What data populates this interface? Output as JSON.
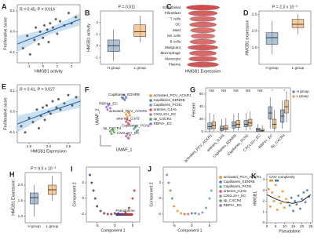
{
  "chart_data": [
    {
      "type": "scatter",
      "panel": "A",
      "annotation": "R = 0.45, P = 0.014",
      "xlabel": "HMGB1 activity",
      "ylabel": "Proliferative score",
      "x": [
        -1.4,
        -1.1,
        -0.9,
        -0.6,
        -0.5,
        -0.3,
        -0.2,
        0,
        0.1,
        0.3,
        0.4,
        0.5,
        0.7,
        0.9,
        1.0,
        1.2,
        1.5,
        1.8,
        2.0,
        2.3
      ],
      "y": [
        -0.08,
        -0.02,
        -0.11,
        -0.04,
        0.02,
        -0.06,
        0.0,
        -0.03,
        0.03,
        0.01,
        -0.05,
        0.04,
        0.02,
        0.06,
        -0.01,
        0.05,
        0.03,
        0.09,
        0.04,
        0.07
      ],
      "color": "#444444",
      "fit": {
        "x": [
          -1.8,
          0.4,
          2.6
        ],
        "y": [
          -0.06,
          0,
          0.06
        ],
        "lower": [
          -0.1,
          -0.015,
          0.03
        ],
        "upper": [
          -0.02,
          0.015,
          0.09
        ]
      },
      "fit_color": "#1f5fa8",
      "band_color": "#a9cbe8",
      "xlim": [
        -1.8,
        2.6
      ],
      "ylim": [
        -0.15,
        0.13
      ],
      "xticks": [
        -1,
        0,
        1,
        2
      ],
      "yticks": [
        -0.1,
        {
          "value": 0,
          "label": "0.0"
        },
        0.1
      ]
    },
    {
      "type": "box",
      "panel": "B",
      "annotation": "P = 0.011",
      "ylabel": "HMGB1 activity",
      "categories": [
        "H group",
        "L group"
      ],
      "colors": [
        "#6b8fb5",
        "#f0a04b"
      ],
      "min": [
        -1.3,
        0.3
      ],
      "q1": [
        -0.5,
        0.8
      ],
      "median": [
        0,
        1.2
      ],
      "q3": [
        0.5,
        1.8
      ],
      "max": [
        1.4,
        2.6
      ],
      "ylim": [
        -1.6,
        3
      ],
      "yticks": [
        -1,
        0,
        1,
        2
      ]
    },
    {
      "type": "violin",
      "panel": "C",
      "xlabel": "HMGB1 Expression",
      "categories": [
        "Endothelial",
        "Fibroblast",
        "T cells",
        "DC",
        "Mast",
        "NK cells",
        "B cells",
        "Malignant",
        "Macrophage",
        "Monocyte",
        "Plasma"
      ],
      "values": [
        3.2,
        2.8,
        2.5,
        2.6,
        2.4,
        2.3,
        2.5,
        2.9,
        2.6,
        2.7,
        3.0
      ],
      "xlim": [
        0,
        4
      ],
      "colormap": [
        "#fbe0e0",
        "#c62828"
      ]
    },
    {
      "type": "box",
      "panel": "D",
      "annotation": "P = 2.3 x 10⁻⁵",
      "ylabel": "HMGB1 expression",
      "categories": [
        "H group",
        "L group"
      ],
      "colors": [
        "#6b8fb5",
        "#f0a04b"
      ],
      "min": [
        1.3,
        1.9
      ],
      "q1": [
        1.6,
        2.1
      ],
      "median": [
        1.8,
        2.2
      ],
      "q3": [
        1.95,
        2.35
      ],
      "max": [
        2.3,
        2.5
      ],
      "ylim": [
        1.0,
        2.6
      ],
      "yticks": [
        1.5,
        {
          "value": 2,
          "label": "2.0"
        },
        2.5
      ]
    },
    {
      "type": "scatter",
      "panel": "E",
      "annotation": "R = 0.41, P = 0.027",
      "xlabel": "HMGB1 Expression",
      "ylabel": "Proliferative score",
      "x": [
        1.3,
        1.4,
        1.5,
        1.6,
        1.7,
        1.75,
        1.8,
        1.85,
        1.9,
        1.95,
        2.0,
        2.05,
        2.1,
        2.2,
        2.25,
        2.3,
        2.4,
        2.5,
        2.6,
        2.7
      ],
      "y": [
        -0.07,
        -0.1,
        -0.03,
        -0.05,
        0.01,
        -0.08,
        -0.02,
        0.02,
        -0.04,
        0.03,
        0.0,
        -0.01,
        0.05,
        0.02,
        0.06,
        0.01,
        0.04,
        0.08,
        0.03,
        0.07
      ],
      "color": "#444444",
      "fit": {
        "x": [
          1.2,
          2.0,
          2.8
        ],
        "y": [
          -0.06,
          0,
          0.05
        ],
        "lower": [
          -0.1,
          -0.015,
          0.02
        ],
        "upper": [
          -0.02,
          0.015,
          0.08
        ]
      },
      "fit_color": "#1f5fa8",
      "band_color": "#a9cbe8",
      "xlim": [
        1.2,
        2.8
      ],
      "ylim": [
        -0.15,
        0.13
      ],
      "xticks": [
        1.5,
        {
          "value": 2,
          "label": "2.0"
        },
        2.5
      ],
      "yticks": [
        -0.1,
        {
          "value": 0,
          "label": "0.0"
        },
        0.1
      ]
    },
    {
      "type": "scatter",
      "panel": "F",
      "xlabel": "UMAP_1",
      "ylabel": "UMAP_2",
      "frame": false,
      "cluster_labels": true,
      "xlim": [
        -6,
        6
      ],
      "ylim": [
        -6,
        6
      ],
      "series": [
        {
          "name": "activated_PCV_ACKR1",
          "color": "#f28e2b",
          "x": [
            0.5,
            1,
            1.5,
            0.8,
            1.3
          ],
          "y": [
            0.5,
            1,
            0.3,
            0,
            0.8
          ]
        },
        {
          "name": "Capillaries_EDNRB",
          "color": "#4e79a7",
          "x": [
            -0.5,
            0,
            0.5,
            0.2,
            -0.2
          ],
          "y": [
            4,
            4.5,
            4,
            3.5,
            3.8
          ]
        },
        {
          "name": "Capillaries_PCN1",
          "color": "#59a89c",
          "x": [
            2.5,
            3,
            3.5,
            3.2,
            2.8
          ],
          "y": [
            -2.5,
            -2,
            -2.8,
            -3,
            -2.2
          ]
        },
        {
          "name": "arteries_GJA5",
          "color": "#e15759",
          "x": [
            0.5,
            1,
            1.5,
            1.2,
            0.8
          ],
          "y": [
            -1,
            -1.3,
            -0.8,
            -1.5,
            -0.6
          ]
        },
        {
          "name": "CXCL10+_EC",
          "color": "#b07aa1",
          "x": [
            0.5,
            1,
            1.5,
            1.2,
            0.8
          ],
          "y": [
            -4,
            -4.3,
            -3.8,
            -4.5,
            -3.6
          ]
        },
        {
          "name": "tip_CXCR4",
          "color": "#59a14f",
          "x": [
            -3.5,
            -3,
            -2.5,
            -3.2,
            -2.8
          ],
          "y": [
            -3,
            -2.6,
            -3.2,
            -3.5,
            -2.8
          ]
        },
        {
          "name": "RBP4+_EC",
          "color": "#9c6ade",
          "x": [
            -4.5,
            -4,
            -3.5,
            -4.2,
            -3.8
          ],
          "y": [
            2,
            2.4,
            1.8,
            1.5,
            2.6
          ]
        }
      ]
    },
    {
      "type": "grouped_box",
      "panel": "G",
      "ylabel": "Percent",
      "ylim": [
        0,
        70
      ],
      "yticks": [
        0,
        20,
        40,
        60
      ],
      "categories": [
        "activated_PCV_ACKR1",
        "arteries_GJA5",
        "Capillaries_EDNRB",
        "Capillaries_PCN1",
        "CXCL10+_EC",
        "RBP4+_EC",
        "tip_CXCR4"
      ],
      "annotations": [
        "NS",
        "NS",
        "NS",
        "NS",
        "NS",
        "*",
        "*"
      ],
      "series": [
        {
          "name": "H group",
          "color": "#6b8fb5",
          "min": [
            0,
            0,
            1,
            2,
            0,
            5,
            5
          ],
          "q1": [
            4,
            2,
            6,
            8,
            1,
            20,
            15
          ],
          "median": [
            8,
            5,
            10,
            12,
            3,
            30,
            25
          ],
          "q3": [
            14,
            9,
            16,
            18,
            6,
            40,
            35
          ],
          "max": [
            30,
            20,
            28,
            30,
            12,
            55,
            50
          ]
        },
        {
          "name": "L group",
          "color": "#f0a04b",
          "min": [
            1,
            0,
            2,
            3,
            0,
            1,
            15
          ],
          "q1": [
            5,
            3,
            7,
            9,
            1,
            6,
            30
          ],
          "median": [
            10,
            6,
            12,
            14,
            2,
            12,
            40
          ],
          "q3": [
            16,
            10,
            18,
            20,
            4,
            20,
            50
          ],
          "max": [
            28,
            22,
            30,
            32,
            10,
            35,
            65
          ]
        }
      ]
    },
    {
      "type": "box",
      "panel": "H",
      "annotation": "P = 9.0 x 10⁻³",
      "ylabel": "HMGB1 Expression",
      "categories": [
        "H group",
        "L group"
      ],
      "colors": [
        "#6b8fb5",
        "#f0a04b"
      ],
      "min": [
        1.0,
        1.5
      ],
      "q1": [
        1.4,
        1.7
      ],
      "median": [
        1.6,
        1.85
      ],
      "q3": [
        1.75,
        2.0
      ],
      "max": [
        2.0,
        2.3
      ],
      "ylim": [
        0.8,
        2.4
      ],
      "yticks": [
        {
          "value": 1,
          "label": "1.0"
        },
        1.5,
        {
          "value": 2,
          "label": "2.0"
        }
      ]
    },
    {
      "type": "scatter",
      "panel": "I",
      "xlabel": "Component 1",
      "ylabel": "Component 2",
      "colorbar_title": "Pseudotime",
      "colormap": [
        "#2c3e99",
        "#d7301f"
      ],
      "x": [
        -7,
        -6.5,
        -6,
        -5.5,
        -5,
        -4,
        -3,
        -2,
        -1,
        0,
        1,
        2,
        3,
        4,
        5,
        5.5
      ],
      "y": [
        3,
        2,
        1,
        0,
        -1,
        -1.6,
        -1.9,
        -2,
        -2,
        -1.9,
        -1.9,
        -2,
        -1.8,
        -1.2,
        0,
        1
      ],
      "c": [
        0,
        1.5,
        3,
        4.5,
        6,
        7.5,
        9,
        10.5,
        12,
        13.5,
        15,
        16.5,
        18,
        19.5,
        21,
        23
      ],
      "xlim": [
        -8,
        7
      ],
      "ylim": [
        -3,
        4
      ],
      "xticks": [
        -5,
        0,
        5
      ],
      "yticks": [
        -2,
        0,
        2
      ]
    },
    {
      "type": "scatter",
      "panel": "J",
      "xlabel": "Component 1",
      "ylabel": "Component 2",
      "xlim": [
        -8,
        7
      ],
      "ylim": [
        -3,
        4
      ],
      "xticks": [
        -5,
        0,
        5
      ],
      "yticks": [
        -2,
        0,
        2
      ],
      "series": [
        {
          "name": "activated_PCV_ACKR1",
          "color": "#f28e2b",
          "x": [
            -5,
            -4,
            -3
          ],
          "y": [
            -1,
            -1.6,
            -1.9
          ]
        },
        {
          "name": "Capillaries_EDNRB",
          "color": "#4e79a7",
          "x": [
            0,
            1
          ],
          "y": [
            -1.9,
            -1.9
          ]
        },
        {
          "name": "Capillaries_PCN1",
          "color": "#59a89c",
          "x": [
            4,
            5,
            5.5
          ],
          "y": [
            -1.2,
            0,
            1
          ]
        },
        {
          "name": "arteries_GJA5",
          "color": "#e15759",
          "x": [
            -2,
            -1
          ],
          "y": [
            -2,
            -2
          ]
        },
        {
          "name": "CXCL10+_EC",
          "color": "#b07aa1",
          "x": [
            2,
            3
          ],
          "y": [
            -2,
            -1.8
          ]
        },
        {
          "name": "tip_CXCR4",
          "color": "#59a14f",
          "x": [
            -6,
            -5.5
          ],
          "y": [
            1,
            0
          ]
        },
        {
          "name": "RBP4+_EC",
          "color": "#9c6ade",
          "x": [
            -7,
            -6.5
          ],
          "y": [
            3,
            2
          ]
        }
      ]
    },
    {
      "type": "scatter",
      "panel": "K",
      "xlabel": "Pseudotime",
      "ylabel": "HMGB1",
      "legend_title": "CNV complexity",
      "xlim": [
        0,
        26
      ],
      "ylim": [
        0,
        4.5
      ],
      "xticks": [
        0,
        5,
        10,
        15,
        20,
        25
      ],
      "yticks": [
        0,
        1,
        2,
        3,
        4
      ],
      "fit": {
        "x": [
          0,
          5,
          10,
          15,
          20,
          25
        ],
        "y": [
          2.6,
          2.2,
          1.9,
          1.8,
          2.0,
          2.6
        ]
      },
      "fit_color": "#222222",
      "series": [
        {
          "color": "#f28e2b",
          "x": [
            1,
            2,
            3,
            4,
            5,
            6,
            7,
            8,
            9,
            10,
            11,
            12
          ],
          "y": [
            3.1,
            1.5,
            2.8,
            2.0,
            3.5,
            1.2,
            2.4,
            1.8,
            2.9,
            1.4,
            2.2,
            1.9
          ]
        },
        {
          "color": "#4e79a7",
          "x": [
            13,
            14,
            15,
            16,
            17,
            18,
            19,
            20,
            21,
            22,
            23,
            24
          ],
          "y": [
            1.6,
            2.3,
            1.1,
            2.0,
            1.7,
            2.5,
            1.3,
            2.2,
            2.8,
            1.9,
            3.0,
            2.4
          ]
        }
      ]
    }
  ]
}
